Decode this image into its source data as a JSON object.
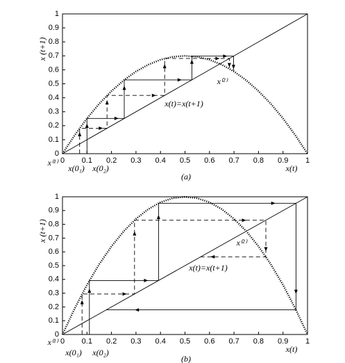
{
  "chart_data": [
    {
      "type": "line",
      "caption": "(a)",
      "xlabel": "x(t)",
      "ylabel": "x (t+1)",
      "xlim": [
        0,
        1
      ],
      "ylim": [
        0,
        1
      ],
      "xticks": [
        0,
        0.1,
        0.2,
        0.3,
        0.4,
        0.5,
        0.6,
        0.7,
        0.8,
        0.9,
        1
      ],
      "yticks": [
        0,
        0.1,
        0.2,
        0.3,
        0.4,
        0.5,
        0.6,
        0.7,
        0.8,
        0.9,
        1
      ],
      "annotations": [
        "x⁽¹⁾",
        "x(0₁)",
        "x(0₂)",
        "x⁽²⁾",
        "x(t)=x(t+1)"
      ],
      "series": [
        {
          "style": "dotted",
          "color": "#000000",
          "x": [
            0,
            0.05,
            0.1,
            0.15,
            0.2,
            0.25,
            0.3,
            0.35,
            0.4,
            0.45,
            0.5,
            0.55,
            0.6,
            0.65,
            0.7,
            0.75,
            0.8,
            0.85,
            0.9,
            0.95,
            1
          ],
          "values": [
            0,
            0.133,
            0.252,
            0.357,
            0.448,
            0.525,
            0.588,
            0.637,
            0.672,
            0.693,
            0.7,
            0.693,
            0.672,
            0.637,
            0.588,
            0.525,
            0.448,
            0.357,
            0.252,
            0.133,
            0
          ]
        },
        {
          "style": "solid",
          "color": "#000000",
          "x": [
            0,
            1
          ],
          "values": [
            0,
            1
          ]
        },
        {
          "style": "solid",
          "color": "#000000",
          "x": [
            0.1,
            0.1,
            0.252,
            0.252,
            0.528,
            0.528,
            0.698,
            0.698
          ],
          "values": [
            0,
            0.252,
            0.252,
            0.528,
            0.528,
            0.698,
            0.698,
            0.59
          ]
        },
        {
          "style": "dashed",
          "color": "#000000",
          "x": [
            0.07,
            0.07,
            0.182,
            0.182,
            0.417,
            0.417,
            0.681,
            0.681
          ],
          "values": [
            0,
            0.182,
            0.182,
            0.417,
            0.417,
            0.681,
            0.681,
            0.608
          ]
        }
      ]
    },
    {
      "type": "line",
      "caption": "(b)",
      "xlabel": "x(t)",
      "ylabel": "x (t+1)",
      "xlim": [
        0,
        1
      ],
      "ylim": [
        0,
        1
      ],
      "xticks": [
        0,
        0.1,
        0.2,
        0.3,
        0.4,
        0.5,
        0.6,
        0.7,
        0.8,
        0.9,
        1
      ],
      "yticks": [
        0,
        0.1,
        0.2,
        0.3,
        0.4,
        0.5,
        0.6,
        0.7,
        0.8,
        0.9,
        1
      ],
      "annotations": [
        "x⁽¹⁾",
        "x(0₁)",
        "x(0₂)",
        "x⁽²⁾",
        "x(t)=x(t+1)"
      ],
      "series": [
        {
          "style": "dotted",
          "color": "#000000",
          "x": [
            0,
            0.05,
            0.1,
            0.15,
            0.2,
            0.25,
            0.3,
            0.35,
            0.4,
            0.45,
            0.5,
            0.55,
            0.6,
            0.65,
            0.7,
            0.75,
            0.8,
            0.85,
            0.9,
            0.95,
            1
          ],
          "values": [
            0,
            0.19,
            0.36,
            0.51,
            0.64,
            0.75,
            0.84,
            0.91,
            0.96,
            0.99,
            1,
            0.99,
            0.96,
            0.91,
            0.84,
            0.75,
            0.64,
            0.51,
            0.36,
            0.19,
            0
          ]
        },
        {
          "style": "solid",
          "color": "#000000",
          "x": [
            0,
            1
          ],
          "values": [
            0,
            1
          ]
        },
        {
          "style": "solid",
          "color": "#000000",
          "x": [
            0.11,
            0.11,
            0.392,
            0.392,
            0.953,
            0.953,
            0.179
          ],
          "values": [
            0,
            0.392,
            0.392,
            0.953,
            0.953,
            0.179,
            0.179
          ]
        },
        {
          "style": "dashed",
          "color": "#000000",
          "x": [
            0.08,
            0.08,
            0.294,
            0.294,
            0.83,
            0.83,
            0.564
          ],
          "values": [
            0,
            0.294,
            0.294,
            0.83,
            0.83,
            0.564,
            0.564
          ]
        }
      ]
    }
  ]
}
